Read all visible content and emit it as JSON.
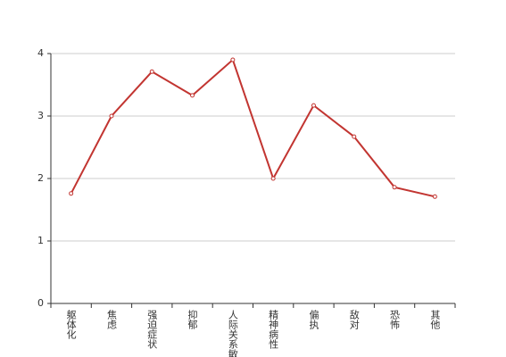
{
  "chart_data": {
    "type": "line",
    "categories": [
      "躯体化",
      "焦虑",
      "强迫症状",
      "抑郁",
      "人际关系敏感",
      "精神病性",
      "偏执",
      "敌对",
      "恐怖",
      "其他"
    ],
    "values": [
      1.76,
      3.0,
      3.71,
      3.33,
      3.9,
      2.0,
      3.17,
      2.67,
      1.86,
      1.71
    ],
    "color": "#c23531",
    "ylim": [
      0,
      4
    ],
    "yticks": [
      0,
      1,
      2,
      3,
      4
    ],
    "grid": true
  }
}
